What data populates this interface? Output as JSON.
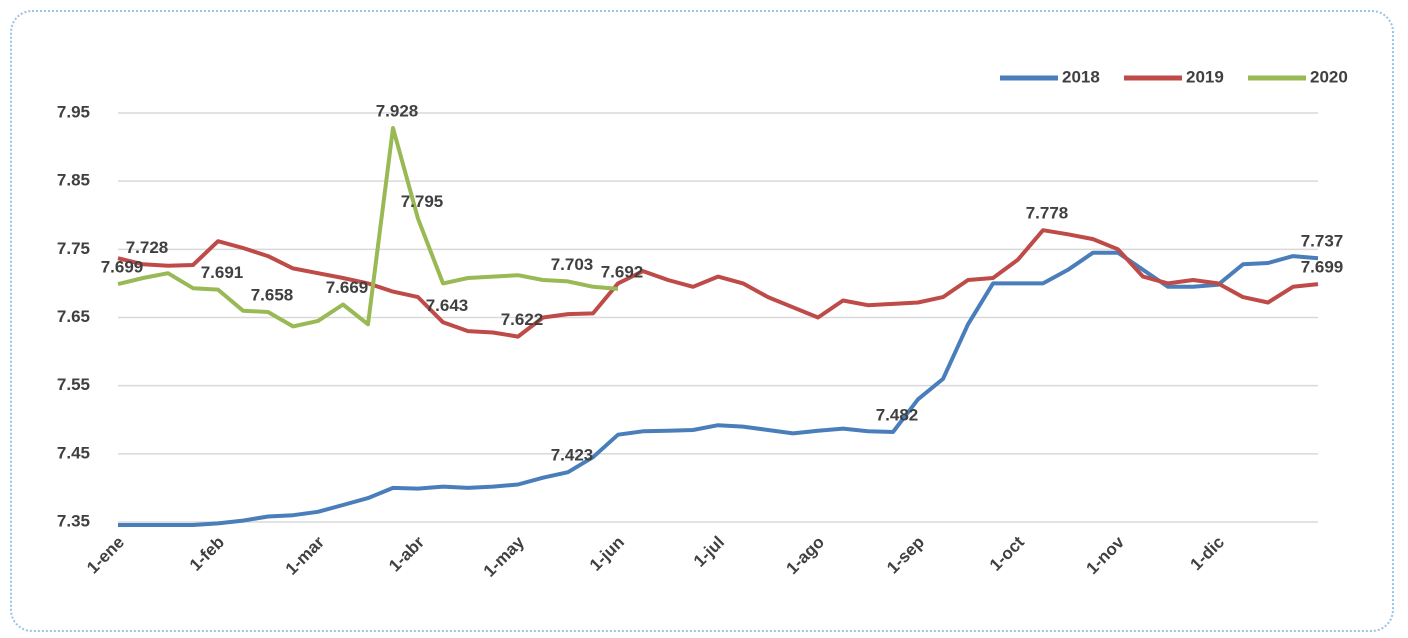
{
  "chart_data": {
    "type": "line",
    "categories": [
      "1-ene",
      null,
      null,
      null,
      "1-feb",
      null,
      null,
      null,
      "1-mar",
      null,
      null,
      null,
      "1-abr",
      null,
      null,
      null,
      "1-may",
      null,
      null,
      null,
      "1-jun",
      null,
      null,
      null,
      "1-jul",
      null,
      null,
      null,
      "1-ago",
      null,
      null,
      null,
      "1-sep",
      null,
      null,
      null,
      "1-oct",
      null,
      null,
      null,
      "1-nov",
      null,
      null,
      null,
      "1-dic",
      null,
      null,
      null,
      null
    ],
    "series": [
      {
        "name": "2018",
        "color": "#4a7ebb",
        "values": [
          7.345,
          7.342,
          7.34,
          7.345,
          7.348,
          7.352,
          7.358,
          7.36,
          7.365,
          7.375,
          7.385,
          7.4,
          7.399,
          7.402,
          7.4,
          7.402,
          7.405,
          7.415,
          7.423,
          7.445,
          7.478,
          7.483,
          7.484,
          7.485,
          7.492,
          7.49,
          7.485,
          7.48,
          7.484,
          7.487,
          7.483,
          7.482,
          7.53,
          7.56,
          7.64,
          7.7,
          7.7,
          7.7,
          7.72,
          7.745,
          7.745,
          7.72,
          7.695,
          7.695,
          7.698,
          7.728,
          7.73,
          7.74,
          7.737
        ],
        "value_labels": [
          null,
          null,
          null,
          null,
          null,
          null,
          null,
          null,
          null,
          null,
          null,
          null,
          null,
          null,
          null,
          null,
          null,
          null,
          "7.423",
          null,
          null,
          null,
          null,
          null,
          null,
          null,
          null,
          null,
          null,
          null,
          null,
          "7.482",
          null,
          null,
          null,
          null,
          null,
          null,
          null,
          null,
          null,
          null,
          null,
          null,
          null,
          null,
          null,
          null,
          "7.737"
        ]
      },
      {
        "name": "2019",
        "color": "#be4b48",
        "values": [
          7.737,
          7.728,
          7.726,
          7.727,
          7.762,
          7.752,
          7.74,
          7.722,
          7.715,
          7.708,
          7.7,
          7.688,
          7.68,
          7.643,
          7.63,
          7.628,
          7.622,
          7.65,
          7.655,
          7.656,
          7.7,
          7.718,
          7.705,
          7.695,
          7.71,
          7.7,
          7.68,
          7.665,
          7.65,
          7.675,
          7.668,
          7.67,
          7.672,
          7.68,
          7.705,
          7.708,
          7.735,
          7.778,
          7.772,
          7.765,
          7.75,
          7.71,
          7.7,
          7.705,
          7.7,
          7.68,
          7.672,
          7.695,
          7.699
        ],
        "value_labels": [
          null,
          "7.728",
          null,
          null,
          null,
          null,
          null,
          null,
          null,
          null,
          null,
          null,
          null,
          "7.643",
          null,
          null,
          "7.622",
          null,
          null,
          null,
          null,
          null,
          null,
          null,
          null,
          null,
          null,
          null,
          null,
          null,
          null,
          null,
          null,
          null,
          null,
          null,
          null,
          "7.778",
          null,
          null,
          null,
          null,
          null,
          null,
          null,
          null,
          null,
          null,
          "7.699"
        ]
      },
      {
        "name": "2020",
        "color": "#98b954",
        "values": [
          7.699,
          7.708,
          7.715,
          7.693,
          7.691,
          7.66,
          7.658,
          7.637,
          7.645,
          7.669,
          7.64,
          7.928,
          7.795,
          7.7,
          7.708,
          7.71,
          7.712,
          7.705,
          7.703,
          7.695,
          7.692,
          null,
          null,
          null,
          null,
          null,
          null,
          null,
          null,
          null,
          null,
          null,
          null,
          null,
          null,
          null,
          null,
          null,
          null,
          null,
          null,
          null,
          null,
          null,
          null,
          null,
          null,
          null,
          null
        ],
        "value_labels": [
          "7.699",
          null,
          null,
          null,
          "7.691",
          null,
          "7.658",
          null,
          null,
          "7.669",
          null,
          "7.928",
          "7.795",
          null,
          null,
          null,
          null,
          null,
          "7.703",
          null,
          "7.692",
          null,
          null,
          null,
          null,
          null,
          null,
          null,
          null,
          null,
          null,
          null,
          null,
          null,
          null,
          null,
          null,
          null,
          null,
          null,
          null,
          null,
          null,
          null,
          null,
          null,
          null,
          null,
          null
        ]
      }
    ],
    "ylim": [
      7.35,
      7.95
    ],
    "yticks": [
      7.35,
      7.45,
      7.55,
      7.65,
      7.75,
      7.85,
      7.95
    ],
    "grid": true,
    "legend": "top-right"
  }
}
